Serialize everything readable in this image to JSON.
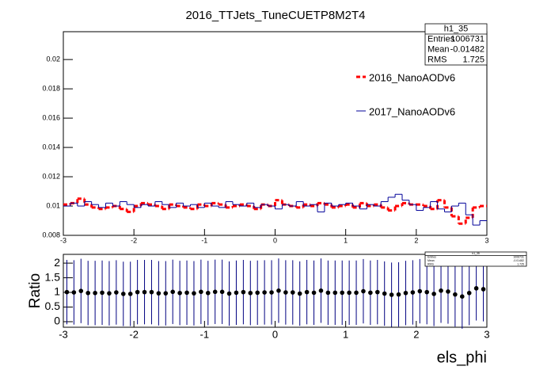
{
  "chart_data": [
    {
      "type": "histogram",
      "title": "2016_TTJets_TuneCUETP8M2T4",
      "bins": [
        -3,
        -2.9,
        -2.8,
        -2.7,
        -2.6,
        -2.5,
        -2.4,
        -2.3,
        -2.2,
        -2.1,
        -2,
        -1.9,
        -1.8,
        -1.7,
        -1.6,
        -1.5,
        -1.4,
        -1.3,
        -1.2,
        -1.1,
        -1,
        -0.9,
        -0.8,
        -0.7,
        -0.6,
        -0.5,
        -0.4,
        -0.3,
        -0.2,
        -0.1,
        0,
        0.1,
        0.2,
        0.3,
        0.4,
        0.5,
        0.6,
        0.7,
        0.8,
        0.9,
        1,
        1.1,
        1.2,
        1.3,
        1.4,
        1.5,
        1.6,
        1.7,
        1.8,
        1.9,
        2,
        2.1,
        2.2,
        2.3,
        2.4,
        2.5,
        2.6,
        2.7,
        2.8,
        2.9,
        3
      ],
      "series": [
        {
          "name": "2016_NanoAODv6",
          "color": "#ff0000",
          "dashed": true,
          "values": [
            0.0101,
            0.0102,
            0.0105,
            0.0101,
            0.0099,
            0.0098,
            0.0099,
            0.01,
            0.0098,
            0.0096,
            0.01,
            0.0102,
            0.0101,
            0.01,
            0.0098,
            0.0101,
            0.01,
            0.0099,
            0.0098,
            0.0101,
            0.01,
            0.0102,
            0.0101,
            0.0099,
            0.01,
            0.0101,
            0.01,
            0.0098,
            0.0101,
            0.01,
            0.0104,
            0.0101,
            0.01,
            0.0099,
            0.0101,
            0.01,
            0.0102,
            0.0101,
            0.0099,
            0.01,
            0.0101,
            0.0099,
            0.0102,
            0.01,
            0.0101,
            0.0099,
            0.0097,
            0.01,
            0.0102,
            0.0101,
            0.0101,
            0.01,
            0.0098,
            0.0104,
            0.0099,
            0.0093,
            0.0088,
            0.0092,
            0.0099,
            0.01
          ]
        },
        {
          "name": "2017_NanoAODv6",
          "color": "#000099",
          "dashed": false,
          "values": [
            0.01,
            0.0102,
            0.01,
            0.0103,
            0.0101,
            0.0099,
            0.0102,
            0.01,
            0.0103,
            0.0101,
            0.0099,
            0.0101,
            0.01,
            0.0103,
            0.0101,
            0.0099,
            0.0102,
            0.01,
            0.0101,
            0.0099,
            0.0102,
            0.01,
            0.0099,
            0.0103,
            0.0101,
            0.01,
            0.0102,
            0.0099,
            0.0101,
            0.01,
            0.0098,
            0.0101,
            0.01,
            0.0103,
            0.01,
            0.0101,
            0.0096,
            0.0102,
            0.01,
            0.0101,
            0.0102,
            0.01,
            0.0098,
            0.0101,
            0.01,
            0.0103,
            0.0106,
            0.0108,
            0.0104,
            0.0101,
            0.0097,
            0.0099,
            0.0103,
            0.0098,
            0.0096,
            0.01,
            0.0102,
            0.0094,
            0.0087,
            0.009
          ]
        }
      ],
      "xlim": [
        -3,
        3
      ],
      "xticks": [
        -3,
        -2,
        -1,
        0,
        1,
        2,
        3
      ],
      "ylim": [
        0.008,
        0.0219
      ],
      "yticks": [
        0.008,
        0.01,
        0.012,
        0.014,
        0.016,
        0.018,
        0.02
      ],
      "stats": {
        "name": "h1_35",
        "labels": [
          "Entries",
          "Mean",
          "RMS"
        ],
        "values": [
          1006731,
          -0.01482,
          1.725
        ]
      }
    },
    {
      "type": "errorbar",
      "x": [
        -2.95,
        -2.85,
        -2.75,
        -2.65,
        -2.55,
        -2.45,
        -2.35,
        -2.25,
        -2.15,
        -2.05,
        -1.95,
        -1.85,
        -1.75,
        -1.65,
        -1.55,
        -1.45,
        -1.35,
        -1.25,
        -1.15,
        -1.05,
        -0.95,
        -0.85,
        -0.75,
        -0.65,
        -0.55,
        -0.45,
        -0.35,
        -0.25,
        -0.15,
        -0.05,
        0.05,
        0.15,
        0.25,
        0.35,
        0.45,
        0.55,
        0.65,
        0.75,
        0.85,
        0.95,
        1.05,
        1.15,
        1.25,
        1.35,
        1.45,
        1.55,
        1.65,
        1.75,
        1.85,
        1.95,
        2.05,
        2.15,
        2.25,
        2.35,
        2.45,
        2.55,
        2.65,
        2.75,
        2.85,
        2.95
      ],
      "values": [
        1.01,
        1.0,
        1.05,
        0.98,
        0.98,
        0.99,
        0.97,
        1.0,
        0.95,
        0.95,
        1.01,
        1.01,
        1.01,
        0.97,
        0.97,
        1.02,
        0.98,
        0.99,
        0.97,
        1.02,
        0.98,
        1.02,
        1.02,
        0.96,
        0.99,
        1.01,
        0.98,
        0.99,
        1.0,
        1.0,
        1.06,
        1.0,
        1.0,
        0.96,
        1.01,
        0.99,
        1.06,
        0.99,
        0.99,
        0.99,
        0.99,
        0.99,
        1.04,
        0.99,
        1.01,
        0.96,
        0.92,
        0.93,
        0.98,
        1.0,
        1.04,
        1.01,
        0.95,
        1.06,
        1.03,
        0.93,
        0.86,
        0.98,
        1.14,
        1.11
      ],
      "errors": [
        1.1,
        1.1,
        1.1,
        1.1,
        1.1,
        1.1,
        1.1,
        1.1,
        1.1,
        1.1,
        1.1,
        1.1,
        1.1,
        1.1,
        1.1,
        1.1,
        1.1,
        1.1,
        1.1,
        1.1,
        1.1,
        1.1,
        1.1,
        1.1,
        1.1,
        1.1,
        1.1,
        1.1,
        1.1,
        1.1,
        1.1,
        1.1,
        1.1,
        1.1,
        1.1,
        1.1,
        1.1,
        1.1,
        1.1,
        1.1,
        1.1,
        1.1,
        1.1,
        1.1,
        1.1,
        1.1,
        1.1,
        1.1,
        1.1,
        1.1,
        1.1,
        1.1,
        1.1,
        1.1,
        1.1,
        1.1,
        1.1,
        1.1,
        1.1,
        1.1
      ],
      "color": "#000000",
      "error_color": "#000080",
      "xlim": [
        -3,
        3
      ],
      "xticks": [
        -3,
        -2,
        -1,
        0,
        1,
        2,
        3
      ],
      "ylim": [
        -0.19,
        2.3
      ],
      "yticks": [
        0,
        0.5,
        1,
        1.5,
        2
      ],
      "ylabel": "Ratio",
      "xlabel": "els_phi"
    }
  ]
}
